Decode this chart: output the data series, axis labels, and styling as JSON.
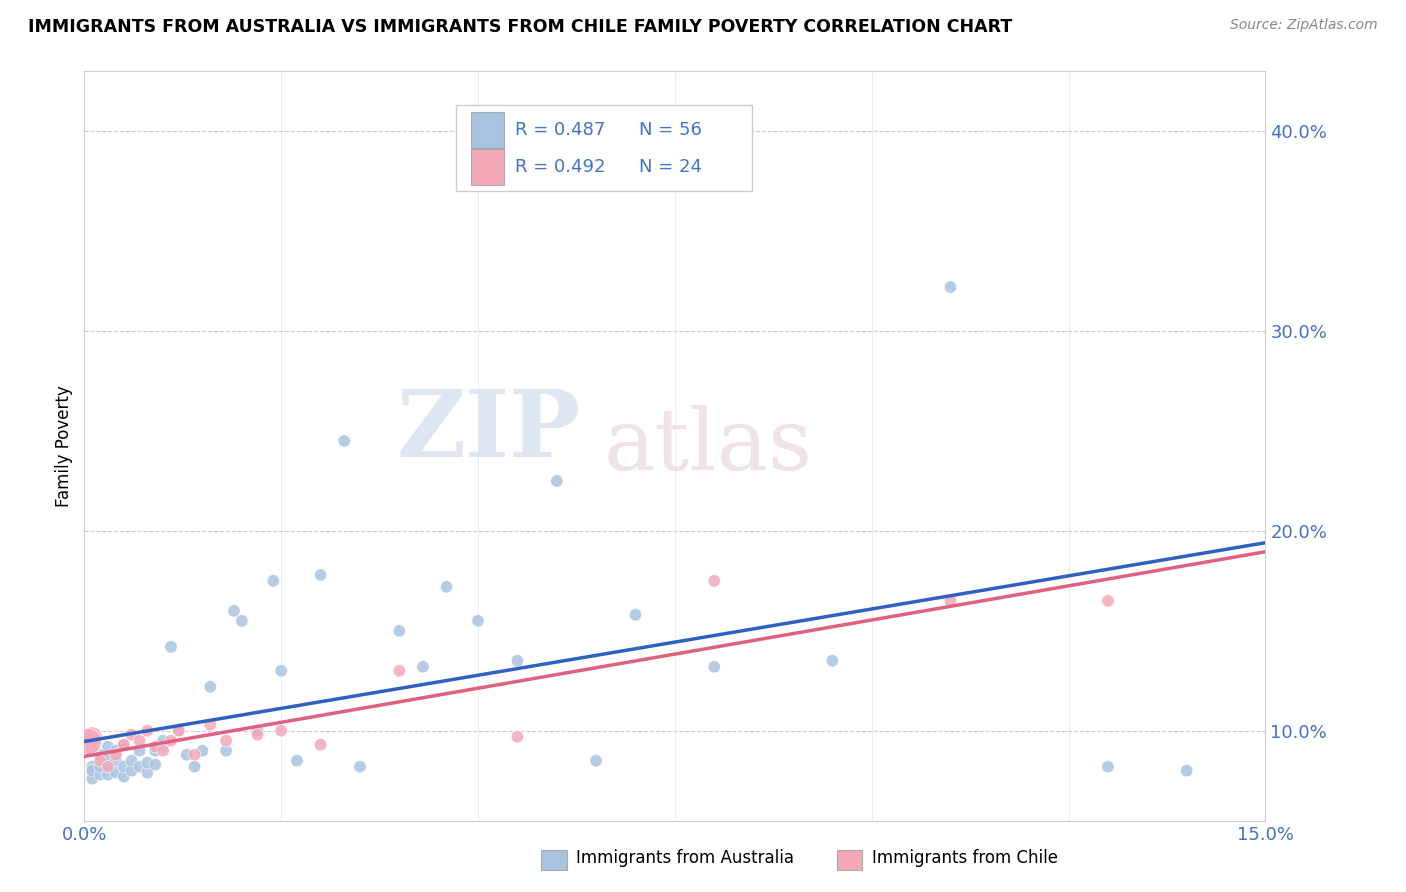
{
  "title": "IMMIGRANTS FROM AUSTRALIA VS IMMIGRANTS FROM CHILE FAMILY POVERTY CORRELATION CHART",
  "source": "Source: ZipAtlas.com",
  "ylabel": "Family Poverty",
  "xlim": [
    0.0,
    0.15
  ],
  "ylim": [
    0.055,
    0.43
  ],
  "yticks": [
    0.1,
    0.2,
    0.3,
    0.4
  ],
  "yticklabels": [
    "10.0%",
    "20.0%",
    "30.0%",
    "40.0%"
  ],
  "xticks": [
    0.0,
    0.025,
    0.05,
    0.075,
    0.1,
    0.125,
    0.15
  ],
  "xticklabels": [
    "0.0%",
    "",
    "",
    "",
    "",
    "",
    "15.0%"
  ],
  "australia_color": "#a8c4e0",
  "chile_color": "#f4a8b8",
  "australia_line_color": "#3060c0",
  "chile_line_color": "#e06080",
  "legend_r_australia": "R = 0.487",
  "legend_n_australia": "N = 56",
  "legend_r_chile": "R = 0.492",
  "legend_n_chile": "N = 24",
  "australia_x": [
    0.001,
    0.001,
    0.001,
    0.001,
    0.002,
    0.002,
    0.002,
    0.003,
    0.003,
    0.003,
    0.003,
    0.004,
    0.004,
    0.004,
    0.005,
    0.005,
    0.005,
    0.006,
    0.006,
    0.007,
    0.007,
    0.008,
    0.008,
    0.009,
    0.009,
    0.01,
    0.01,
    0.011,
    0.012,
    0.013,
    0.014,
    0.015,
    0.016,
    0.018,
    0.019,
    0.02,
    0.022,
    0.024,
    0.025,
    0.027,
    0.03,
    0.033,
    0.035,
    0.04,
    0.043,
    0.046,
    0.05,
    0.055,
    0.06,
    0.065,
    0.07,
    0.08,
    0.095,
    0.11,
    0.13,
    0.14
  ],
  "australia_y": [
    0.079,
    0.082,
    0.076,
    0.08,
    0.078,
    0.082,
    0.088,
    0.078,
    0.083,
    0.087,
    0.092,
    0.079,
    0.085,
    0.09,
    0.077,
    0.082,
    0.093,
    0.08,
    0.085,
    0.082,
    0.09,
    0.079,
    0.084,
    0.083,
    0.09,
    0.092,
    0.095,
    0.142,
    0.1,
    0.088,
    0.082,
    0.09,
    0.122,
    0.09,
    0.16,
    0.155,
    0.1,
    0.175,
    0.13,
    0.085,
    0.178,
    0.245,
    0.082,
    0.15,
    0.132,
    0.172,
    0.155,
    0.135,
    0.225,
    0.085,
    0.158,
    0.132,
    0.135,
    0.322,
    0.082,
    0.08
  ],
  "australia_sizes": [
    80,
    80,
    80,
    80,
    80,
    80,
    80,
    80,
    80,
    80,
    80,
    80,
    80,
    80,
    80,
    80,
    80,
    80,
    80,
    80,
    80,
    80,
    80,
    80,
    80,
    80,
    80,
    80,
    80,
    80,
    80,
    80,
    80,
    80,
    80,
    80,
    80,
    80,
    80,
    80,
    80,
    80,
    80,
    80,
    80,
    80,
    80,
    80,
    80,
    80,
    80,
    80,
    80,
    80,
    80,
    80
  ],
  "chile_x": [
    0.001,
    0.001,
    0.002,
    0.003,
    0.004,
    0.005,
    0.006,
    0.007,
    0.008,
    0.009,
    0.01,
    0.011,
    0.012,
    0.014,
    0.016,
    0.018,
    0.022,
    0.025,
    0.03,
    0.04,
    0.055,
    0.08,
    0.11,
    0.13
  ],
  "chile_y": [
    0.097,
    0.09,
    0.085,
    0.082,
    0.088,
    0.093,
    0.098,
    0.095,
    0.1,
    0.092,
    0.09,
    0.095,
    0.1,
    0.088,
    0.103,
    0.095,
    0.098,
    0.1,
    0.093,
    0.13,
    0.097,
    0.175,
    0.165,
    0.165
  ],
  "chile_sizes": [
    200,
    80,
    80,
    80,
    80,
    80,
    80,
    80,
    80,
    80,
    80,
    80,
    80,
    80,
    80,
    80,
    80,
    80,
    80,
    80,
    80,
    80,
    80,
    80
  ],
  "watermark_zip": "ZIP",
  "watermark_atlas": "atlas",
  "background_color": "#ffffff",
  "grid_color": "#cccccc",
  "tick_color": "#4472c4",
  "n_color": "#e06000"
}
